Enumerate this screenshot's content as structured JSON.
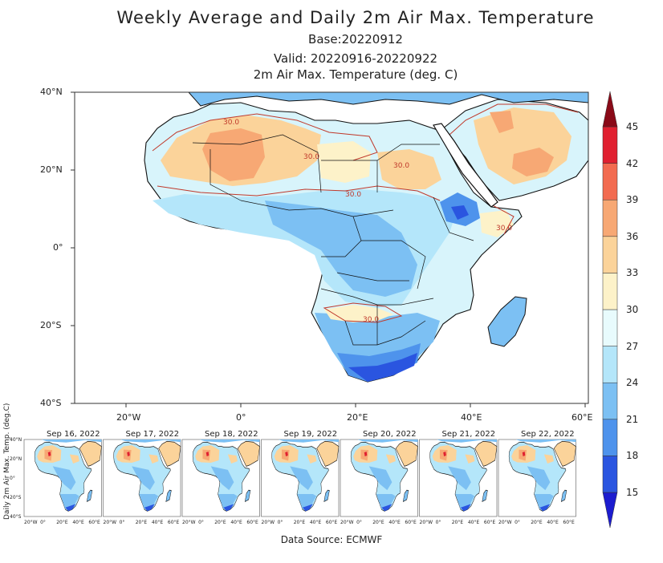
{
  "title": "Weekly Average and Daily 2m Air Max. Temperature",
  "base": "Base:20220912",
  "valid": "Valid: 20220916-20220922",
  "subtitle": "2m Air Max. Temperature (deg. C)",
  "main_map": {
    "lat_labels": [
      "40°N",
      "20°N",
      "0°",
      "20°S",
      "40°S"
    ],
    "lon_labels": [
      "20°W",
      "0°",
      "20°E",
      "40°E",
      "60°E"
    ],
    "contour_labels": [
      "30.0",
      "30.0",
      "30.0",
      "30.0",
      "30.0",
      "30.0"
    ]
  },
  "colorbar": {
    "levels": [
      "15",
      "18",
      "21",
      "24",
      "27",
      "30",
      "33",
      "36",
      "39",
      "42",
      "45"
    ],
    "colors": [
      "#1c1ccf",
      "#2a55e0",
      "#4e93ec",
      "#7cc0f3",
      "#b4e6fa",
      "#e8fbfd",
      "#fdf2c9",
      "#fbd39a",
      "#f7a874",
      "#f26b50",
      "#e02030",
      "#b30e1f",
      "#8a0a18"
    ]
  },
  "panels": {
    "y_label": "Daily 2m Air Max. Temp. (deg.C)",
    "lat_labels": [
      "40°N",
      "20°N",
      "0°",
      "20°S",
      "40°S"
    ],
    "lon_labels": [
      "20°W",
      "0°",
      "20°E",
      "40°E",
      "60°E"
    ],
    "days": [
      "Sep 16, 2022",
      "Sep 17, 2022",
      "Sep 18, 2022",
      "Sep 19, 2022",
      "Sep 20, 2022",
      "Sep 21, 2022",
      "Sep 22, 2022"
    ]
  },
  "source": "Data Source: ECMWF"
}
